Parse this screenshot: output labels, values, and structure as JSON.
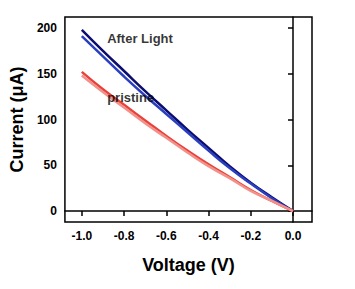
{
  "chart_data": {
    "type": "line",
    "x_label": "Voltage (V)",
    "y_label": "Current (μA)",
    "x": [
      -1.0,
      -0.9,
      -0.8,
      -0.7,
      -0.6,
      -0.5,
      -0.4,
      -0.3,
      -0.2,
      -0.1,
      0.0
    ],
    "series": [
      {
        "color": "#0d0d70",
        "values": [
          198,
          175,
          153,
          131,
          110,
          89,
          69,
          49,
          31,
          15,
          0
        ]
      },
      {
        "color": "#2a3fc0",
        "values": [
          191,
          169,
          147,
          126,
          106,
          86,
          66,
          47,
          30,
          14,
          0
        ]
      },
      {
        "color": "#e8403a",
        "values": [
          152,
          133,
          116,
          99,
          82,
          66,
          51,
          37,
          23,
          11,
          0
        ]
      },
      {
        "color": "#f2908a",
        "values": [
          148,
          130,
          113,
          96,
          80,
          64,
          49,
          36,
          22,
          11,
          0
        ]
      }
    ],
    "annotations": [
      {
        "text": "After Light",
        "x": -0.88,
        "y": 189
      },
      {
        "text": "pristine",
        "x": -0.88,
        "y": 124
      }
    ],
    "xlim": [
      -1.08,
      0.09
    ],
    "ylim": [
      -12,
      212
    ],
    "xticks": [
      {
        "value": -1.0,
        "label": "-1.0"
      },
      {
        "value": -0.8,
        "label": "-0.8"
      },
      {
        "value": -0.6,
        "label": "-0.6"
      },
      {
        "value": -0.4,
        "label": "-0.4"
      },
      {
        "value": -0.2,
        "label": "-0.2"
      },
      {
        "value": 0.0,
        "label": "0.0"
      }
    ],
    "yticks": [
      0,
      50,
      100,
      150,
      200
    ],
    "grid": false
  }
}
